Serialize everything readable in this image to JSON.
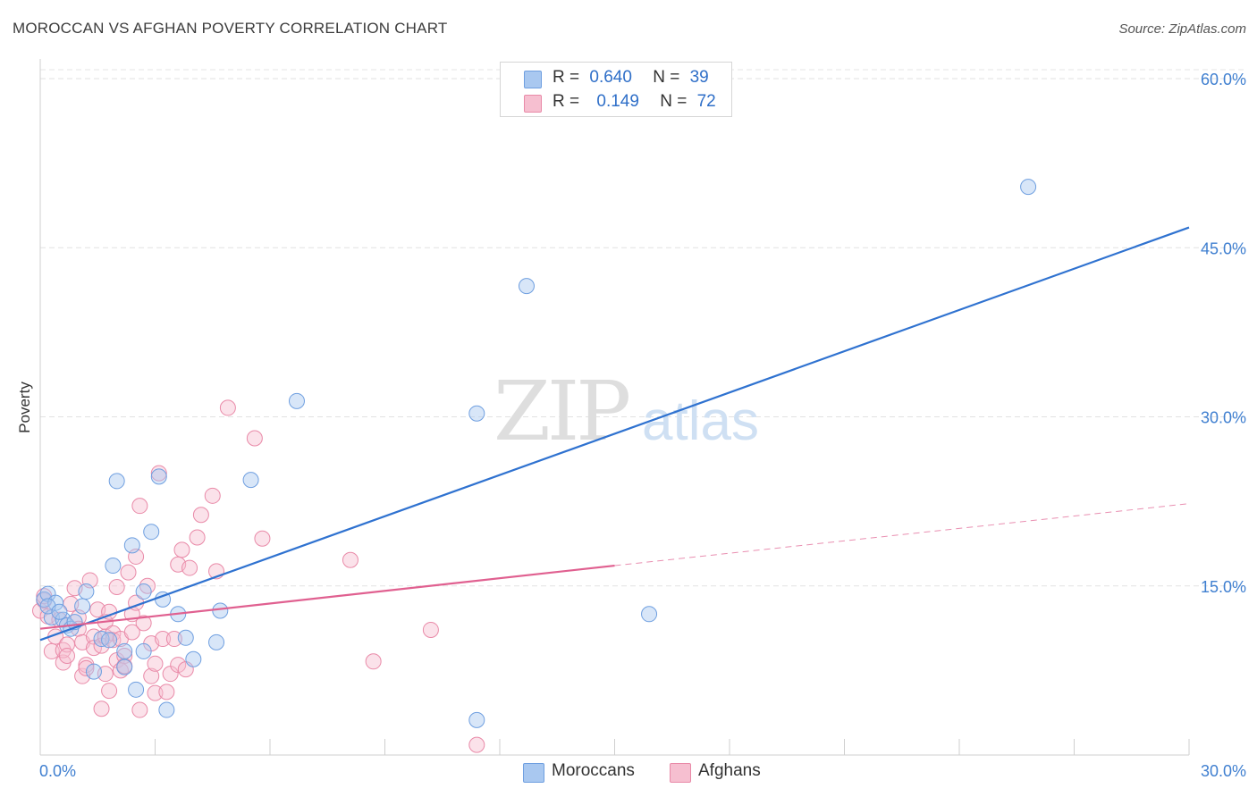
{
  "title": "MOROCCAN VS AFGHAN POVERTY CORRELATION CHART",
  "source": "Source: ZipAtlas.com",
  "watermark": {
    "zip": "ZIP",
    "atlas": "atlas"
  },
  "legend": {
    "rows": [
      {
        "r_label": "R =",
        "r_value": "0.640",
        "n_label": "N =",
        "n_value": "39",
        "color": "#a9c8f0",
        "stroke": "#6f9fe0"
      },
      {
        "r_label": "R =",
        "r_value": "0.149",
        "n_label": "N =",
        "n_value": "72",
        "color": "#f6bfd0",
        "stroke": "#e98aa8"
      }
    ]
  },
  "bottom_legend": [
    {
      "label": "Moroccans",
      "color": "#a9c8f0",
      "stroke": "#6f9fe0"
    },
    {
      "label": "Afghans",
      "color": "#f6bfd0",
      "stroke": "#e98aa8"
    }
  ],
  "chart_data": {
    "type": "scatter",
    "title": "MOROCCAN VS AFGHAN POVERTY CORRELATION CHART",
    "xlabel": "",
    "ylabel": "Poverty",
    "xlim": [
      0,
      30
    ],
    "ylim": [
      0,
      60
    ],
    "x_tick_labels": [
      {
        "value": 0,
        "label": "0.0%"
      },
      {
        "value": 30,
        "label": "30.0%"
      }
    ],
    "y_tick_labels": [
      {
        "value": 15,
        "label": "15.0%"
      },
      {
        "value": 30,
        "label": "30.0%"
      },
      {
        "value": 45,
        "label": "45.0%"
      },
      {
        "value": 60,
        "label": "60.0%"
      }
    ],
    "grid": true,
    "legend_position": "top-center",
    "series": [
      {
        "name": "Moroccans",
        "color": "#6f9fe0",
        "fill": "#a9c8f0",
        "line_color": "#2f72d0",
        "trend": {
          "x": [
            0,
            30
          ],
          "y": [
            10.2,
            46.8
          ]
        },
        "points": [
          [
            0.1,
            13.8
          ],
          [
            0.2,
            14.3
          ],
          [
            0.3,
            12.2
          ],
          [
            0.4,
            13.5
          ],
          [
            0.6,
            12.0
          ],
          [
            0.7,
            11.5
          ],
          [
            0.8,
            11.2
          ],
          [
            0.9,
            11.8
          ],
          [
            1.1,
            13.2
          ],
          [
            1.2,
            14.5
          ],
          [
            1.4,
            7.4
          ],
          [
            1.6,
            10.3
          ],
          [
            1.8,
            10.2
          ],
          [
            1.9,
            16.8
          ],
          [
            2.0,
            24.3
          ],
          [
            2.2,
            7.8
          ],
          [
            2.2,
            9.2
          ],
          [
            2.4,
            18.6
          ],
          [
            2.5,
            5.8
          ],
          [
            2.7,
            9.2
          ],
          [
            2.7,
            14.5
          ],
          [
            2.9,
            19.8
          ],
          [
            3.1,
            24.7
          ],
          [
            3.2,
            13.8
          ],
          [
            3.3,
            4.0
          ],
          [
            3.6,
            12.5
          ],
          [
            3.8,
            10.4
          ],
          [
            4.0,
            8.5
          ],
          [
            4.6,
            10.0
          ],
          [
            4.7,
            12.8
          ],
          [
            5.5,
            24.4
          ],
          [
            6.7,
            31.4
          ],
          [
            11.4,
            30.3
          ],
          [
            11.4,
            3.1
          ],
          [
            12.7,
            41.6
          ],
          [
            15.9,
            12.5
          ],
          [
            25.8,
            50.4
          ],
          [
            0.2,
            13.2
          ],
          [
            0.5,
            12.7
          ]
        ]
      },
      {
        "name": "Afghans",
        "color": "#e98aa8",
        "fill": "#f6bfd0",
        "line_color": "#e06090",
        "trend": {
          "x": [
            0,
            15
          ],
          "y": [
            11.2,
            16.8
          ]
        },
        "trend_dashed": {
          "x": [
            15,
            30
          ],
          "y": [
            16.8,
            22.3
          ]
        },
        "points": [
          [
            0.0,
            12.8
          ],
          [
            0.1,
            13.7
          ],
          [
            0.1,
            14.1
          ],
          [
            0.2,
            12.3
          ],
          [
            0.3,
            9.2
          ],
          [
            0.4,
            10.5
          ],
          [
            0.5,
            12.0
          ],
          [
            0.6,
            8.2
          ],
          [
            0.6,
            9.3
          ],
          [
            0.7,
            9.8
          ],
          [
            0.7,
            8.8
          ],
          [
            0.8,
            13.4
          ],
          [
            0.9,
            14.8
          ],
          [
            1.0,
            12.2
          ],
          [
            1.0,
            11.2
          ],
          [
            1.1,
            10.0
          ],
          [
            1.1,
            7.0
          ],
          [
            1.2,
            8.0
          ],
          [
            1.2,
            7.7
          ],
          [
            1.3,
            15.5
          ],
          [
            1.4,
            10.5
          ],
          [
            1.4,
            9.5
          ],
          [
            1.5,
            12.9
          ],
          [
            1.6,
            9.7
          ],
          [
            1.6,
            4.1
          ],
          [
            1.7,
            11.8
          ],
          [
            1.7,
            10.5
          ],
          [
            1.7,
            7.2
          ],
          [
            1.8,
            5.7
          ],
          [
            1.8,
            12.7
          ],
          [
            1.9,
            10.8
          ],
          [
            1.9,
            10.2
          ],
          [
            2.0,
            8.4
          ],
          [
            2.0,
            14.9
          ],
          [
            2.1,
            10.3
          ],
          [
            2.1,
            7.5
          ],
          [
            2.2,
            8.8
          ],
          [
            2.2,
            7.9
          ],
          [
            2.3,
            16.2
          ],
          [
            2.4,
            12.5
          ],
          [
            2.4,
            10.9
          ],
          [
            2.5,
            13.5
          ],
          [
            2.5,
            17.6
          ],
          [
            2.6,
            22.1
          ],
          [
            2.6,
            4.0
          ],
          [
            2.7,
            11.7
          ],
          [
            2.9,
            9.9
          ],
          [
            2.9,
            7.0
          ],
          [
            3.0,
            5.5
          ],
          [
            3.0,
            8.1
          ],
          [
            3.1,
            25.0
          ],
          [
            3.2,
            10.3
          ],
          [
            3.3,
            5.6
          ],
          [
            3.4,
            7.2
          ],
          [
            3.5,
            10.3
          ],
          [
            3.6,
            8.0
          ],
          [
            3.6,
            16.9
          ],
          [
            3.7,
            18.2
          ],
          [
            3.8,
            7.6
          ],
          [
            3.9,
            16.6
          ],
          [
            4.1,
            19.3
          ],
          [
            4.2,
            21.3
          ],
          [
            4.5,
            23.0
          ],
          [
            4.6,
            16.3
          ],
          [
            4.9,
            30.8
          ],
          [
            5.6,
            28.1
          ],
          [
            5.8,
            19.2
          ],
          [
            8.1,
            17.3
          ],
          [
            8.7,
            8.3
          ],
          [
            10.2,
            11.1
          ],
          [
            11.4,
            0.9
          ],
          [
            2.8,
            15.0
          ]
        ]
      }
    ]
  }
}
